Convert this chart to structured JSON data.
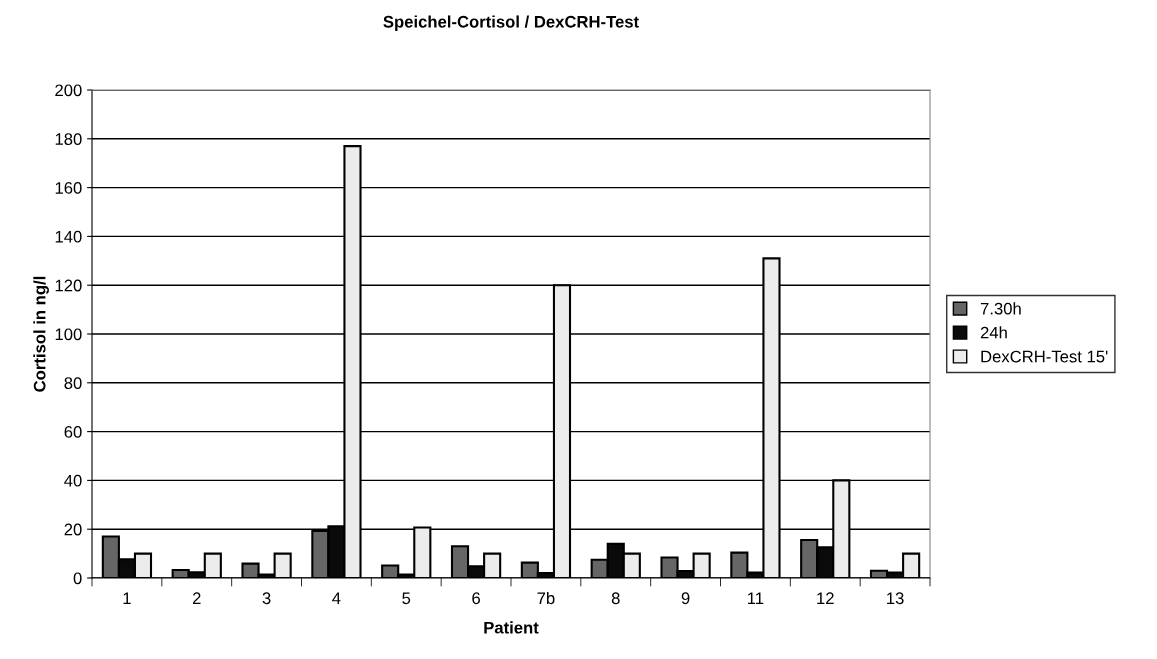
{
  "chart_data": {
    "type": "bar",
    "title": "Speichel-Cortisol / DexCRH-Test",
    "xlabel": "Patient",
    "ylabel": "Cortisol in ng/l",
    "categories": [
      "1",
      "2",
      "3",
      "4",
      "5",
      "6",
      "7b",
      "8",
      "9",
      "11",
      "12",
      "13"
    ],
    "series": [
      {
        "name": "7.30h",
        "color": "#666666",
        "values": [
          17,
          3.3,
          5.9,
          19.3,
          5.1,
          13,
          6.3,
          7.5,
          8.4,
          10.4,
          15.6,
          3
        ]
      },
      {
        "name": "24h",
        "color": "#0a0a0a",
        "values": [
          7.7,
          2.3,
          1.4,
          21.2,
          1.4,
          4.8,
          2,
          14,
          2.9,
          2.2,
          12.6,
          2.2
        ]
      },
      {
        "name": "DexCRH-Test 15'",
        "color": "#ececec",
        "values": [
          10,
          10,
          10,
          177,
          20.7,
          10,
          120,
          10,
          10,
          131,
          40,
          10
        ]
      }
    ],
    "ylim": [
      0,
      200
    ],
    "yticks": [
      0,
      20,
      40,
      60,
      80,
      100,
      120,
      140,
      160,
      180,
      200
    ],
    "grid": "y",
    "legend": "right"
  }
}
